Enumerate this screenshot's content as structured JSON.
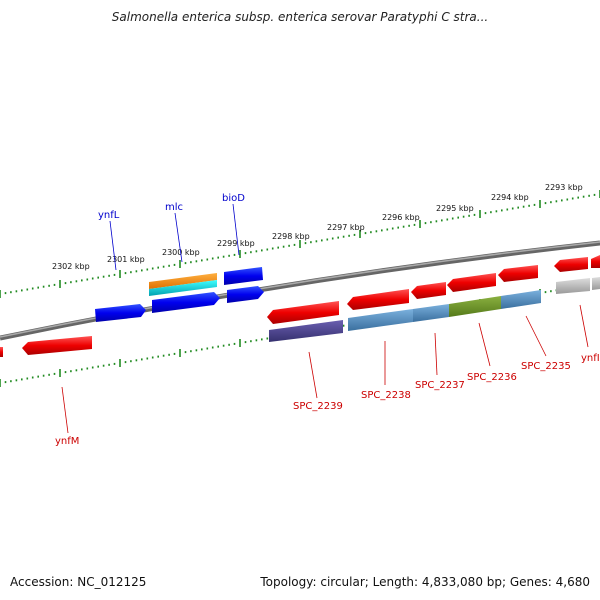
{
  "header": {
    "title": "Salmonella enterica subsp. enterica serovar Paratyphi C stra..."
  },
  "footer": {
    "accession": "Accession: NC_012125",
    "topology": "Topology: circular; Length: 4,833,080 bp; Genes: 4,680"
  },
  "scale": {
    "ticks": [
      "2302 kbp",
      "2301 kbp",
      "2300 kbp",
      "2299 kbp",
      "2298 kbp",
      "2297 kbp",
      "2296 kbp",
      "2295 kbp",
      "2294 kbp",
      "2293 kbp"
    ]
  },
  "genes": {
    "forward": [
      {
        "label": "ynfL",
        "color": "#0000ff"
      },
      {
        "label": "mlc",
        "color": "#0000ff"
      },
      {
        "label": "bioD",
        "color": "#0000ff"
      }
    ],
    "reverse": [
      {
        "label": "ynfM",
        "color": "#ff0000"
      },
      {
        "label": "SPC_2239",
        "color": "#ff0000"
      },
      {
        "label": "SPC_2238",
        "color": "#ff0000"
      },
      {
        "label": "SPC_2237",
        "color": "#ff0000"
      },
      {
        "label": "SPC_2236",
        "color": "#ff0000"
      },
      {
        "label": "SPC_2235",
        "color": "#ff0000"
      },
      {
        "label": "ynfI",
        "color": "#ff0000"
      }
    ]
  },
  "colors": {
    "forward_cds": "#0000ee",
    "reverse_cds": "#ee0000",
    "orange_feature": "#ff8c00",
    "cyan_feature": "#00ced1",
    "steelblue_feature": "#4682b4",
    "olive_feature": "#6b8e23",
    "purple_feature": "#483d8b",
    "grey_feature": "#bbbbbb",
    "tick_color": "#228b22",
    "backbone": "#777777"
  }
}
